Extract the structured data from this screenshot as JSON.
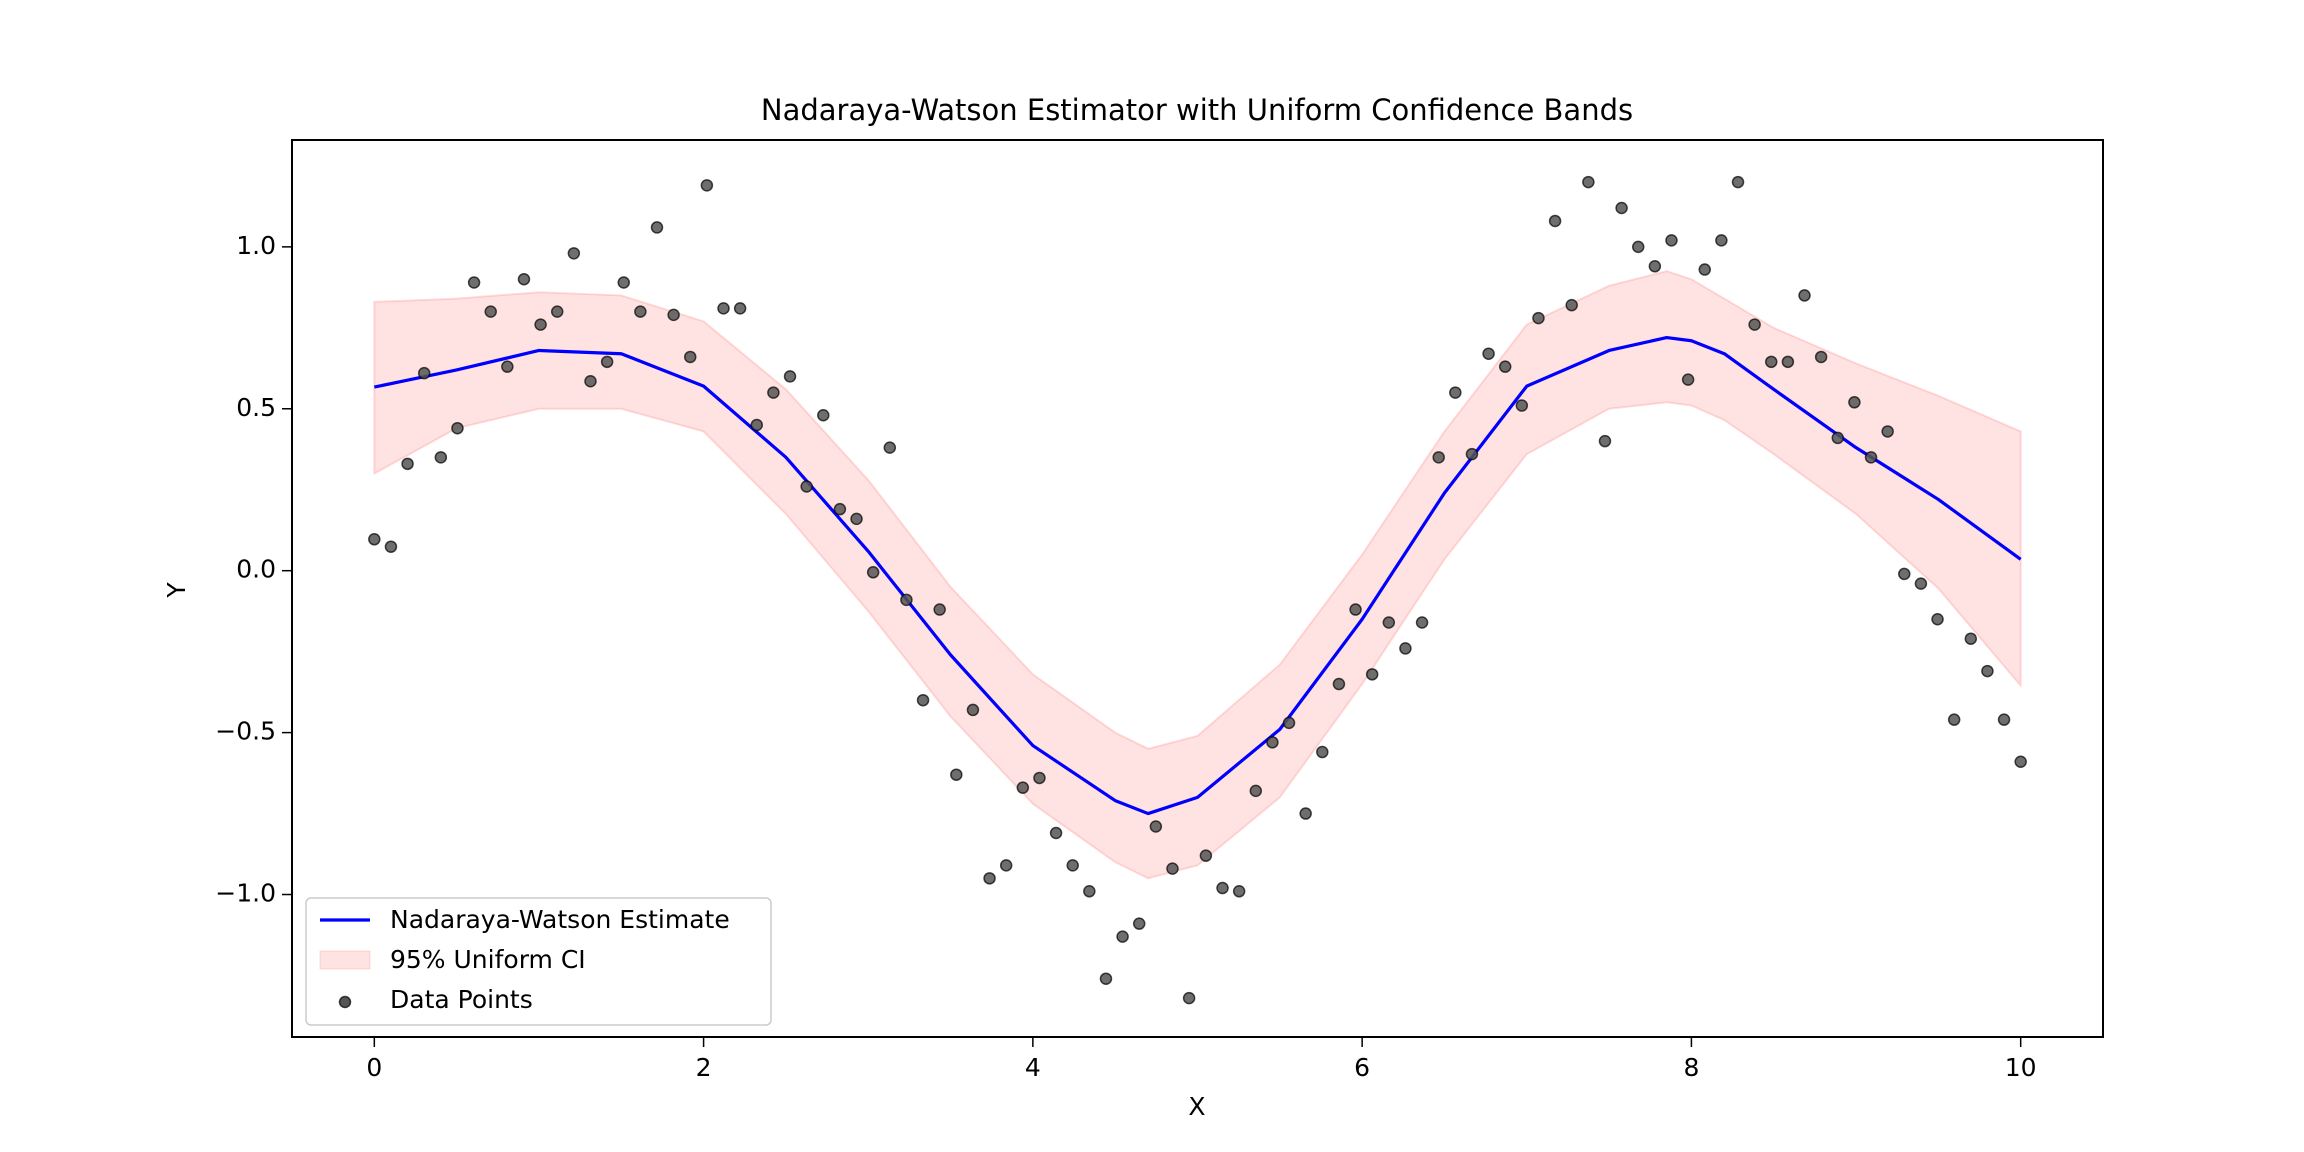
{
  "chart_data": {
    "type": "line",
    "title": "Nadaraya-Watson Estimator with Uniform Confidence Bands",
    "xlabel": "X",
    "ylabel": "Y",
    "xlim": [
      -0.5,
      10.5
    ],
    "ylim": [
      -1.44,
      1.33
    ],
    "xticks": [
      0,
      2,
      4,
      6,
      8,
      10
    ],
    "yticks": [
      {
        "value": -1.0,
        "label": "−1.0"
      },
      {
        "value": -0.5,
        "label": "−0.5"
      },
      {
        "value": 0.0,
        "label": "0.0"
      },
      0.5,
      {
        "value": 1.0,
        "label": "1.0"
      }
    ],
    "grid": false,
    "legend": "lower left",
    "series": [
      {
        "name": "Nadaraya-Watson Estimate",
        "type": "line",
        "color": "#0000ff",
        "x": [
          0,
          0.5,
          1,
          1.5,
          2,
          2.5,
          3,
          3.5,
          4,
          4.5,
          4.7,
          5,
          5.5,
          6,
          6.5,
          7,
          7.5,
          7.85,
          8,
          8.2,
          8.5,
          9,
          9.5,
          10
        ],
        "values": [
          0.567,
          0.62,
          0.68,
          0.67,
          0.57,
          0.35,
          0.06,
          -0.26,
          -0.54,
          -0.71,
          -0.75,
          -0.7,
          -0.49,
          -0.15,
          0.24,
          0.57,
          0.68,
          0.72,
          0.71,
          0.67,
          0.56,
          0.38,
          0.22,
          0.035
        ]
      },
      {
        "name": "95% Uniform CI",
        "type": "band",
        "color": "#ff0000",
        "x": [
          0,
          0.5,
          1,
          1.5,
          2,
          2.5,
          3,
          3.5,
          4,
          4.5,
          4.7,
          5,
          5.5,
          6,
          6.5,
          7,
          7.5,
          7.85,
          8,
          8.2,
          8.5,
          9,
          9.5,
          10
        ],
        "upper": [
          0.83,
          0.84,
          0.86,
          0.85,
          0.77,
          0.56,
          0.28,
          -0.05,
          -0.32,
          -0.5,
          -0.55,
          -0.51,
          -0.29,
          0.05,
          0.43,
          0.76,
          0.88,
          0.925,
          0.9,
          0.84,
          0.75,
          0.64,
          0.54,
          0.43
        ],
        "lower": [
          0.3,
          0.44,
          0.5,
          0.5,
          0.43,
          0.175,
          -0.125,
          -0.45,
          -0.72,
          -0.9,
          -0.95,
          -0.91,
          -0.7,
          -0.35,
          0.035,
          0.36,
          0.5,
          0.52,
          0.51,
          0.465,
          0.36,
          0.175,
          -0.055,
          -0.355
        ]
      },
      {
        "name": "Data Points",
        "type": "scatter",
        "color": "#555555",
        "x": [
          0,
          0.101,
          0.202,
          0.303,
          0.404,
          0.505,
          0.606,
          0.707,
          0.808,
          0.909,
          1.01,
          1.111,
          1.212,
          1.313,
          1.414,
          1.515,
          1.616,
          1.717,
          1.818,
          1.919,
          2.02,
          2.121,
          2.222,
          2.323,
          2.424,
          2.525,
          2.626,
          2.727,
          2.828,
          2.929,
          3.03,
          3.131,
          3.232,
          3.333,
          3.434,
          3.535,
          3.636,
          3.737,
          3.838,
          3.939,
          4.04,
          4.141,
          4.242,
          4.343,
          4.444,
          4.545,
          4.646,
          4.747,
          4.848,
          4.949,
          5.051,
          5.152,
          5.253,
          5.354,
          5.455,
          5.556,
          5.657,
          5.758,
          5.859,
          5.96,
          6.061,
          6.162,
          6.263,
          6.364,
          6.465,
          6.566,
          6.667,
          6.768,
          6.869,
          6.97,
          7.071,
          7.172,
          7.273,
          7.374,
          7.475,
          7.576,
          7.677,
          7.778,
          7.879,
          7.98,
          8.081,
          8.182,
          8.283,
          8.384,
          8.485,
          8.586,
          8.687,
          8.788,
          8.889,
          8.99,
          9.091,
          9.192,
          9.293,
          9.394,
          9.495,
          9.596,
          9.697,
          9.798,
          9.899,
          10
        ],
        "values": [
          0.097,
          0.074,
          0.33,
          0.61,
          0.35,
          0.44,
          0.89,
          0.8,
          0.63,
          0.9,
          0.76,
          0.8,
          0.98,
          0.585,
          0.645,
          0.89,
          0.8,
          1.06,
          0.79,
          0.66,
          1.19,
          0.81,
          0.81,
          0.45,
          0.55,
          0.6,
          0.26,
          0.48,
          0.19,
          0.16,
          -0.005,
          0.38,
          -0.09,
          -0.4,
          -0.12,
          -0.63,
          -0.43,
          -0.95,
          -0.91,
          -0.67,
          -0.64,
          -0.81,
          -0.91,
          -0.99,
          -1.26,
          -1.13,
          -1.09,
          -0.79,
          -0.92,
          -1.32,
          -0.88,
          -0.98,
          -0.99,
          -0.68,
          -0.53,
          -0.47,
          -0.75,
          -0.56,
          -0.35,
          -0.12,
          -0.32,
          -0.16,
          -0.24,
          -0.16,
          0.35,
          0.55,
          0.36,
          0.67,
          0.63,
          0.51,
          0.78,
          1.08,
          0.82,
          1.2,
          0.4,
          1.12,
          1.0,
          0.94,
          1.02,
          0.59,
          0.93,
          1.02,
          1.2,
          0.76,
          0.645,
          0.645,
          0.85,
          0.66,
          0.41,
          0.52,
          0.35,
          0.43,
          -0.01,
          -0.04,
          -0.15,
          -0.46,
          -0.21,
          -0.31,
          -0.46,
          -0.59
        ]
      }
    ]
  }
}
